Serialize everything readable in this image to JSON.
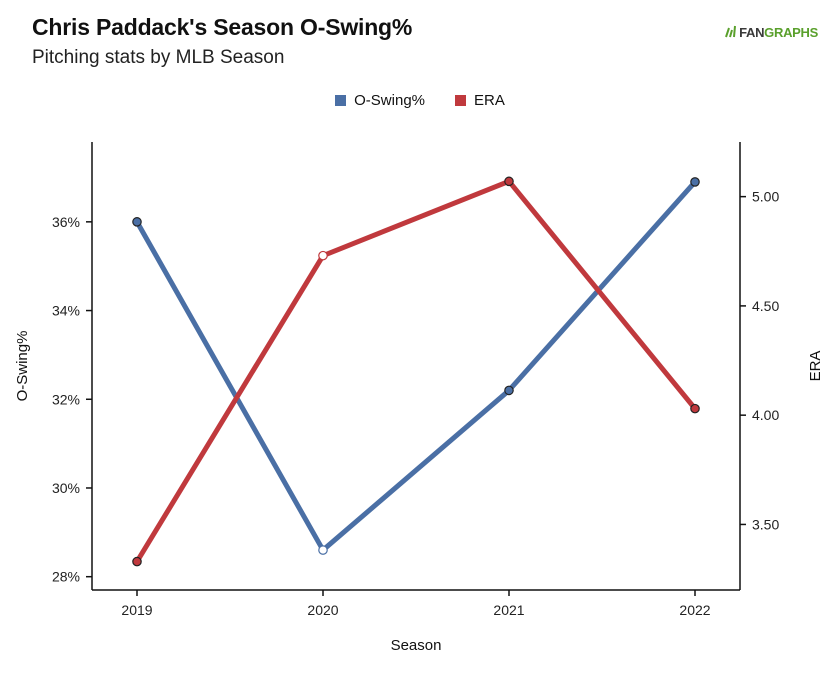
{
  "header": {
    "title": "Chris Paddack's Season O-Swing%",
    "subtitle": "Pitching stats by MLB Season"
  },
  "logo": {
    "part1": "FAN",
    "part2": "GRAPHS"
  },
  "colors": {
    "oswing": "#4a6fa5",
    "era": "#c0393d"
  },
  "chart_data": {
    "type": "line",
    "x": [
      "2019",
      "2020",
      "2021",
      "2022"
    ],
    "xlabel": "Season",
    "ylabel_left": "O-Swing%",
    "ylabel_right": "ERA",
    "y_left": {
      "min": 27.7,
      "max": 37.8,
      "ticks": [
        28,
        30,
        32,
        34,
        36
      ],
      "tick_labels": [
        "28%",
        "30%",
        "32%",
        "34%",
        "36%"
      ]
    },
    "y_right": {
      "min": 3.2,
      "max": 5.25,
      "ticks": [
        3.5,
        4.0,
        4.5,
        5.0
      ],
      "tick_labels": [
        "3.50",
        "4.00",
        "4.50",
        "5.00"
      ]
    },
    "series": [
      {
        "name": "O-Swing%",
        "axis": "left",
        "color": "#4a6fa5",
        "values": [
          36.0,
          28.6,
          32.2,
          36.9
        ],
        "hollow": [
          false,
          true,
          false,
          false
        ]
      },
      {
        "name": "ERA",
        "axis": "right",
        "color": "#c0393d",
        "values": [
          3.33,
          4.73,
          5.07,
          4.03
        ],
        "hollow": [
          false,
          true,
          false,
          false
        ]
      }
    ],
    "grid": false,
    "legend_position": "top-center"
  }
}
